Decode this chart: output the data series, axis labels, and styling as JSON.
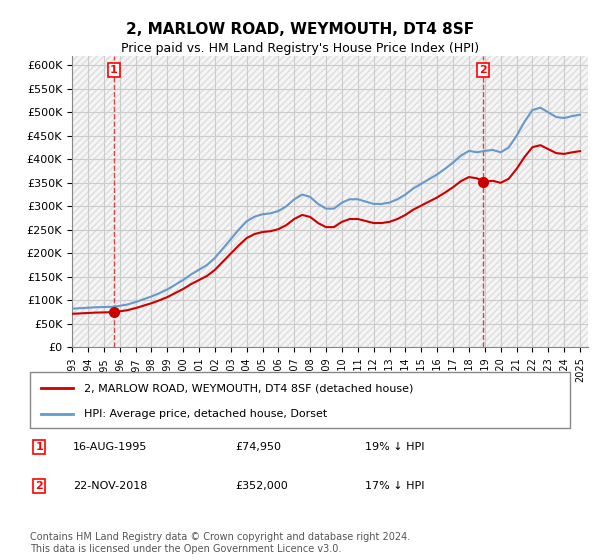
{
  "title": "2, MARLOW ROAD, WEYMOUTH, DT4 8SF",
  "subtitle": "Price paid vs. HM Land Registry's House Price Index (HPI)",
  "ylabel_ticks": [
    0,
    50000,
    100000,
    150000,
    200000,
    250000,
    300000,
    350000,
    400000,
    450000,
    500000,
    550000,
    600000
  ],
  "ylabel_labels": [
    "£0",
    "£50K",
    "£100K",
    "£150K",
    "£200K",
    "£250K",
    "£300K",
    "£350K",
    "£400K",
    "£450K",
    "£500K",
    "£550K",
    "£600K"
  ],
  "ylim": [
    0,
    620000
  ],
  "xlim_start": 1993.0,
  "xlim_end": 2025.5,
  "x_tick_labels": [
    "1993",
    "1994",
    "1995",
    "1996",
    "1997",
    "1998",
    "1999",
    "2000",
    "2001",
    "2002",
    "2003",
    "2004",
    "2005",
    "2006",
    "2007",
    "2008",
    "2009",
    "2010",
    "2011",
    "2012",
    "2013",
    "2014",
    "2015",
    "2016",
    "2017",
    "2018",
    "2019",
    "2020",
    "2021",
    "2022",
    "2023",
    "2024",
    "2025"
  ],
  "x_tick_positions": [
    1993,
    1994,
    1995,
    1996,
    1997,
    1998,
    1999,
    2000,
    2001,
    2002,
    2003,
    2004,
    2005,
    2006,
    2007,
    2008,
    2009,
    2010,
    2011,
    2012,
    2013,
    2014,
    2015,
    2016,
    2017,
    2018,
    2019,
    2020,
    2021,
    2022,
    2023,
    2024,
    2025
  ],
  "hpi_color": "#6699cc",
  "price_color": "#cc0000",
  "sale1_x": 1995.62,
  "sale1_y": 74950,
  "sale1_label": "1",
  "sale2_x": 2018.9,
  "sale2_y": 352000,
  "sale2_label": "2",
  "legend_line1": "2, MARLOW ROAD, WEYMOUTH, DT4 8SF (detached house)",
  "legend_line2": "HPI: Average price, detached house, Dorset",
  "annotation1": "1    16-AUG-1995         £74,950         19% ↓ HPI",
  "annotation2": "2    22-NOV-2018         £352,000       17% ↓ HPI",
  "footnote": "Contains HM Land Registry data © Crown copyright and database right 2024.\nThis data is licensed under the Open Government Licence v3.0.",
  "background_color": "#ffffff",
  "plot_bg_color": "#f5f5f5",
  "grid_color": "#cccccc",
  "hatch_color": "#dddddd"
}
